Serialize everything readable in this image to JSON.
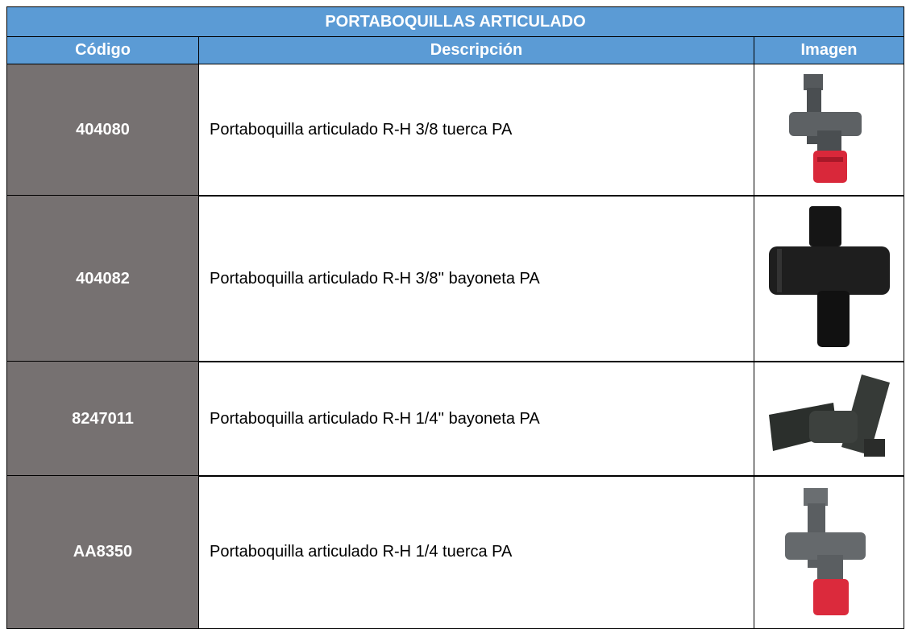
{
  "table": {
    "title": "PORTABOQUILLAS ARTICULADO",
    "headers": [
      "Código",
      "Descripción",
      "Imagen"
    ],
    "rows": [
      [
        "404080",
        "Portaboquilla articulado R-H 3/8 tuerca PA"
      ],
      [
        "404082",
        "Portaboquilla articulado R-H 3/8'' bayoneta PA"
      ],
      [
        "8247011",
        "Portaboquilla articulado R-H 1/4'' bayoneta PA"
      ],
      [
        "AA8350",
        "Portaboquilla articulado R-H 1/4 tuerca PA"
      ]
    ]
  }
}
